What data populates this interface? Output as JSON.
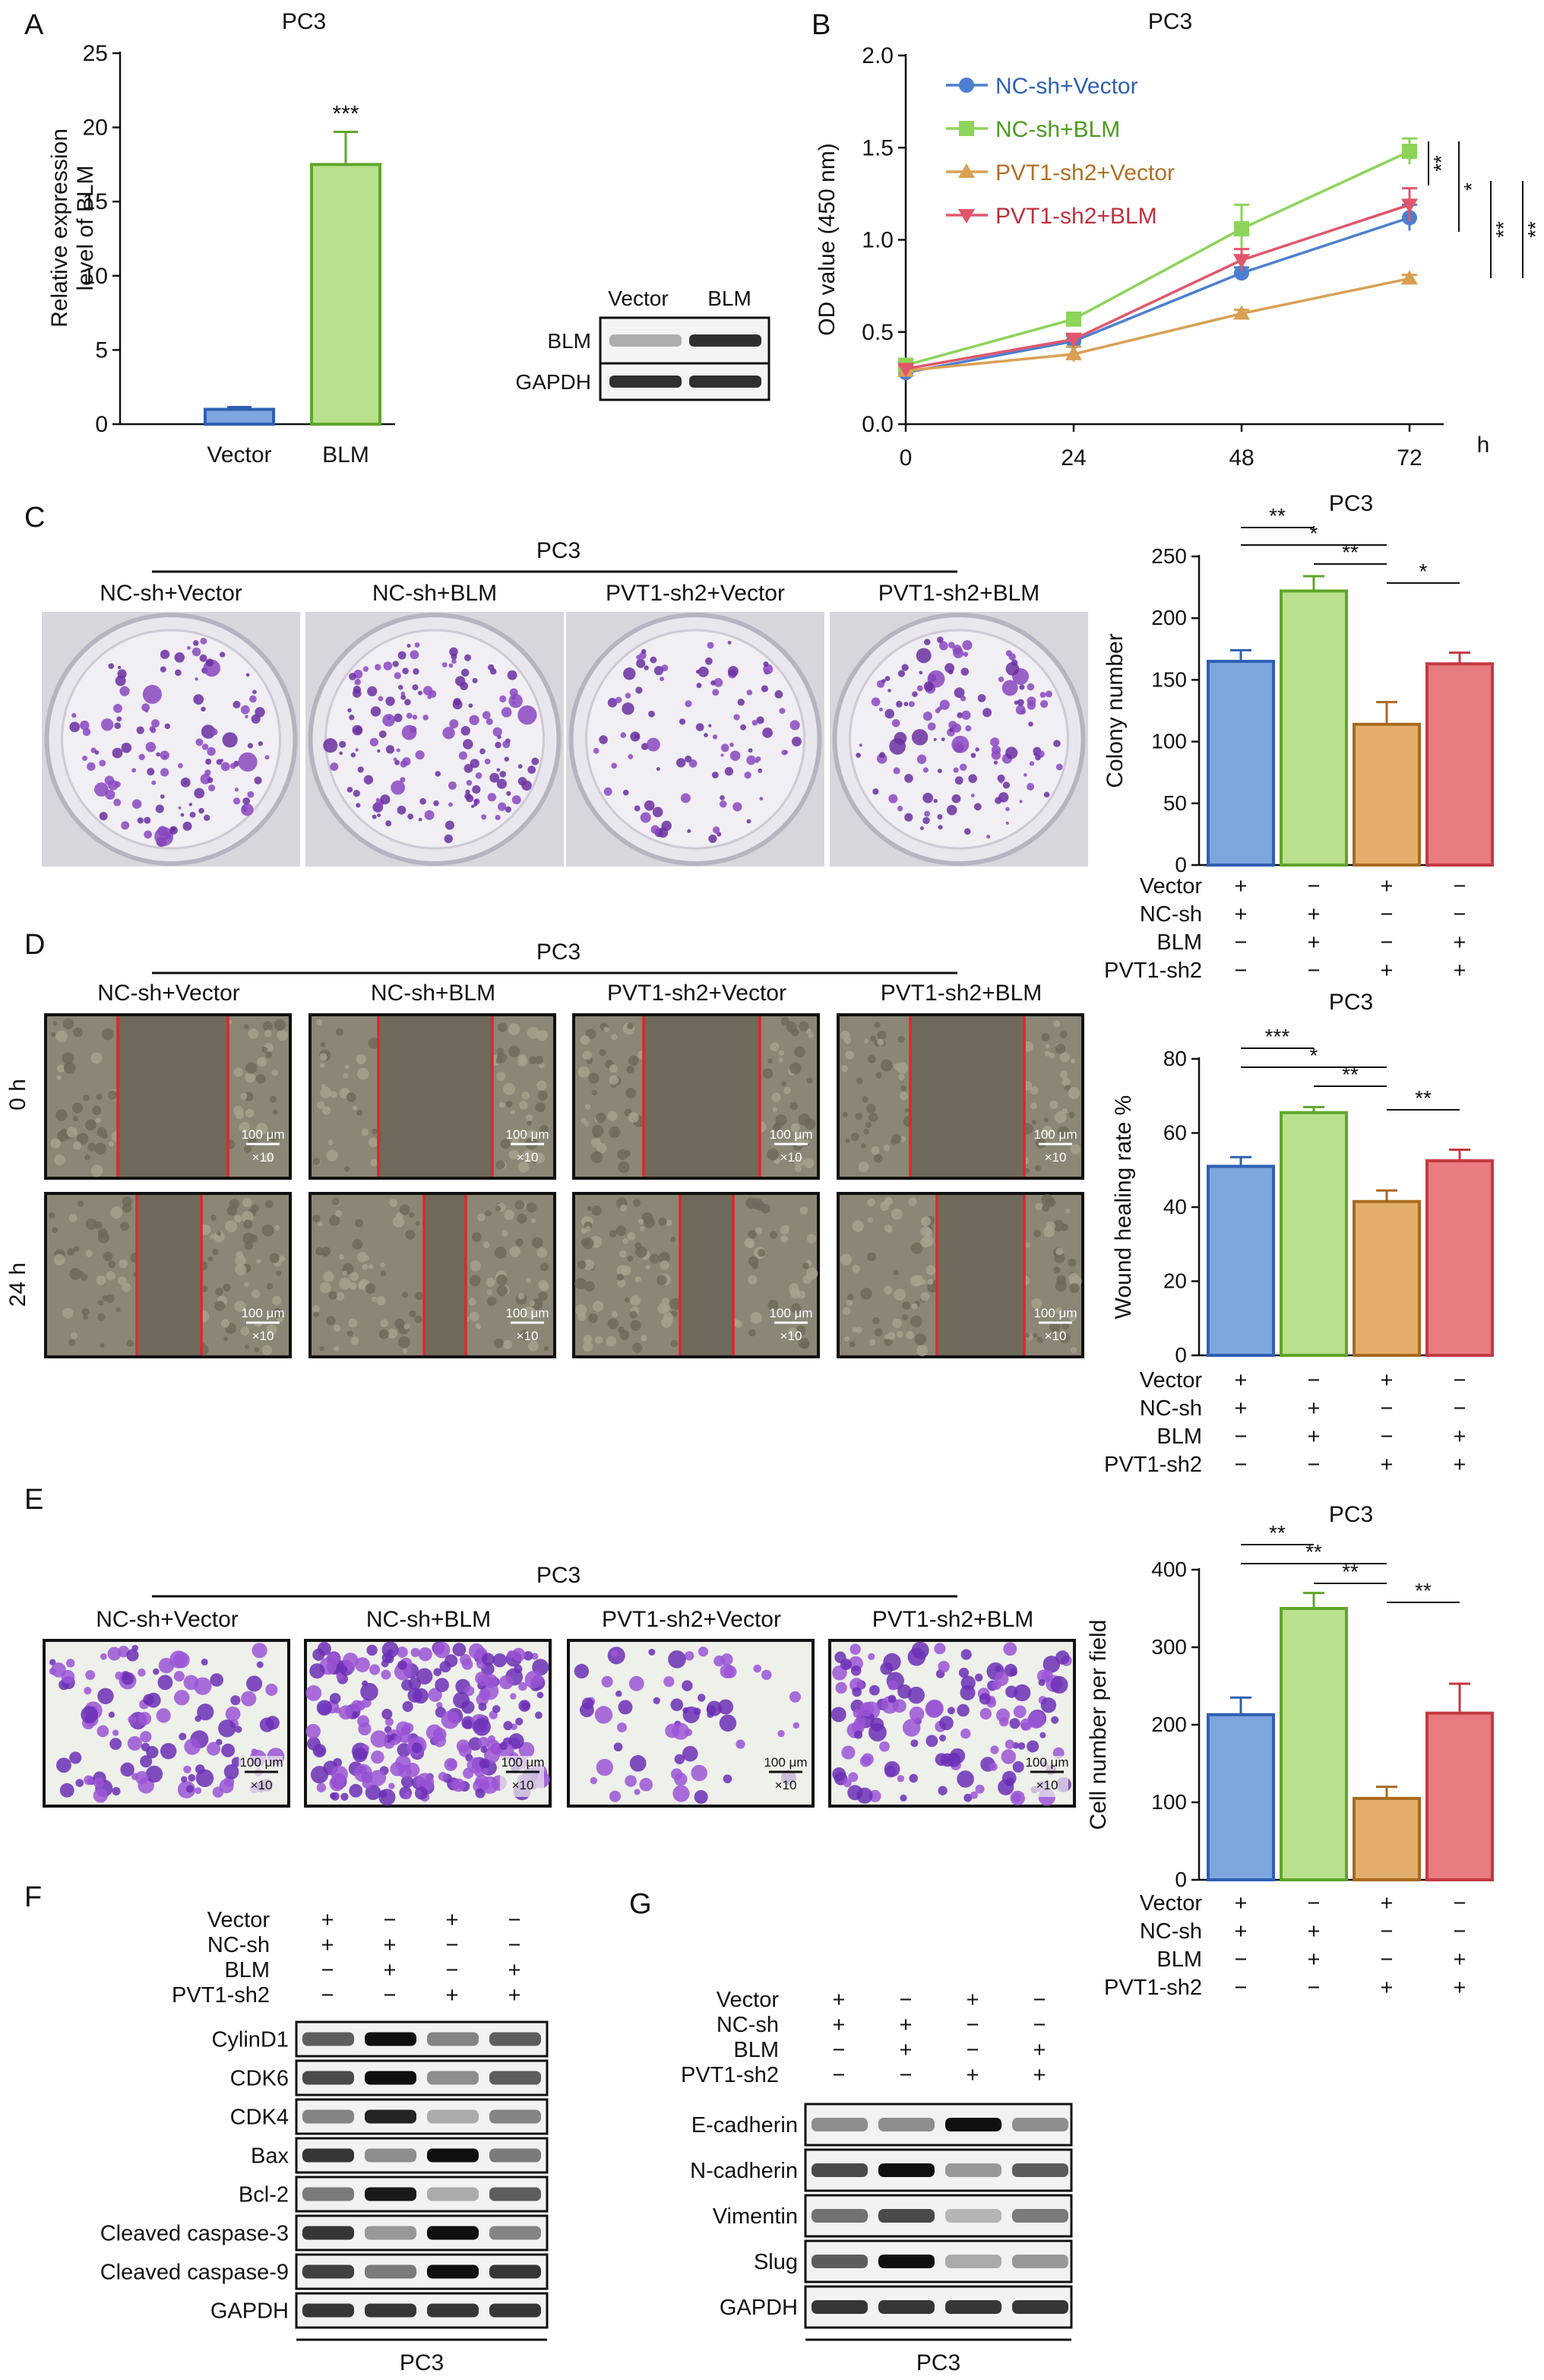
{
  "panel_letters": {
    "a": "A",
    "b": "B",
    "c": "C",
    "d": "D",
    "e": "E",
    "f": "F",
    "g": "G"
  },
  "cell_line": "PC3",
  "group_labels": [
    "NC-sh+Vector",
    "NC-sh+BLM",
    "PVT1-sh2+Vector",
    "PVT1-sh2+BLM"
  ],
  "row_labels": [
    "Vector",
    "NC-sh",
    "BLM",
    "PVT1-sh2"
  ],
  "sign_matrix": [
    [
      "+",
      "−",
      "+",
      "−"
    ],
    [
      "+",
      "+",
      "−",
      "−"
    ],
    [
      "−",
      "+",
      "−",
      "+"
    ],
    [
      "−",
      "−",
      "+",
      "+"
    ]
  ],
  "time_labels": [
    "0 h",
    "24 h"
  ],
  "scale_bar": {
    "length": "100 μm",
    "mag": "×10"
  },
  "colors": {
    "blue": "#7EA6DE",
    "green": "#B9E08C",
    "orange": "#E3AE6B",
    "red": "#E87C80",
    "purple": "#8A3FC9",
    "wound_red": "#E0262B",
    "scratch_bg": "#6F6A5B"
  },
  "chart_data": [
    {
      "id": "A",
      "type": "bar",
      "title": "PC3",
      "ylabel": "Relative expression level of BLM",
      "categories": [
        "Vector",
        "BLM"
      ],
      "values": [
        1.0,
        17.5
      ],
      "errors": [
        0.15,
        2.2
      ],
      "ylim": [
        0,
        25
      ],
      "yticks": [
        0,
        5,
        10,
        15,
        20,
        25
      ],
      "annotations": [
        "***"
      ]
    },
    {
      "id": "B",
      "type": "line",
      "title": "PC3",
      "ylabel": "OD value (450 nm)",
      "xlabel": "h",
      "x": [
        0,
        24,
        48,
        72
      ],
      "ylim": [
        0,
        2.0
      ],
      "yticks": [
        "0.0",
        "0.5",
        "1.0",
        "1.5",
        "2.0"
      ],
      "series": [
        {
          "name": "NC-sh+Vector",
          "values": [
            0.28,
            0.45,
            0.82,
            1.12
          ],
          "errors": [
            0.02,
            0.03,
            0.03,
            0.07
          ]
        },
        {
          "name": "NC-sh+BLM",
          "values": [
            0.32,
            0.57,
            1.06,
            1.48
          ],
          "errors": [
            0.02,
            0.03,
            0.13,
            0.07
          ]
        },
        {
          "name": "PVT1-sh2+Vector",
          "values": [
            0.29,
            0.38,
            0.6,
            0.79
          ],
          "errors": [
            0.02,
            0.04,
            0.02,
            0.02
          ]
        },
        {
          "name": "PVT1-sh2+BLM",
          "values": [
            0.3,
            0.46,
            0.89,
            1.19
          ],
          "errors": [
            0.02,
            0.03,
            0.06,
            0.09
          ]
        }
      ],
      "sig": [
        "**",
        "*",
        "**",
        "**"
      ]
    },
    {
      "id": "C",
      "type": "bar",
      "title": "PC3",
      "ylabel": "Colony number",
      "ylim": [
        0,
        250
      ],
      "yticks": [
        0,
        50,
        100,
        150,
        200,
        250
      ],
      "values": [
        165,
        222,
        114,
        163
      ],
      "errors": [
        9,
        12,
        18,
        9
      ],
      "sig": [
        "**",
        "*",
        "**",
        "*"
      ]
    },
    {
      "id": "D",
      "type": "bar",
      "title": "PC3",
      "ylabel": "Wound healing rate %",
      "ylim": [
        0,
        80
      ],
      "yticks": [
        0,
        20,
        40,
        60,
        80
      ],
      "values": [
        51,
        65.5,
        41.5,
        52.5
      ],
      "errors": [
        2.5,
        1.5,
        3,
        3
      ],
      "sig": [
        "***",
        "*",
        "**",
        "**"
      ]
    },
    {
      "id": "E",
      "type": "bar",
      "title": "PC3",
      "ylabel": "Cell number per field",
      "ylim": [
        0,
        400
      ],
      "yticks": [
        0,
        100,
        200,
        300,
        400
      ],
      "values": [
        213,
        350,
        105,
        215
      ],
      "errors": [
        22,
        20,
        15,
        38
      ],
      "sig": [
        "**",
        "**",
        "**",
        "**"
      ]
    }
  ],
  "blot_a": {
    "headers": [
      "Vector",
      "BLM"
    ],
    "rows": [
      "BLM",
      "GAPDH"
    ]
  },
  "blot_f": {
    "rows": [
      "CylinD1",
      "CDK6",
      "CDK4",
      "Bax",
      "Bcl-2",
      "Cleaved caspase-3",
      "Cleaved caspase-9",
      "GAPDH"
    ],
    "intensity": [
      [
        0.6,
        1,
        0.4,
        0.6
      ],
      [
        0.7,
        1,
        0.35,
        0.6
      ],
      [
        0.4,
        0.9,
        0.2,
        0.4
      ],
      [
        0.8,
        0.35,
        1,
        0.45
      ],
      [
        0.45,
        0.95,
        0.2,
        0.6
      ],
      [
        0.8,
        0.3,
        1,
        0.4
      ],
      [
        0.75,
        0.45,
        1,
        0.8
      ],
      [
        0.8,
        0.8,
        0.8,
        0.8
      ]
    ]
  },
  "blot_g": {
    "rows": [
      "E-cadherin",
      "N-cadherin",
      "Vimentin",
      "Slug",
      "GAPDH"
    ],
    "intensity": [
      [
        0.35,
        0.35,
        1,
        0.35
      ],
      [
        0.7,
        1,
        0.3,
        0.6
      ],
      [
        0.5,
        0.7,
        0.15,
        0.45
      ],
      [
        0.6,
        1,
        0.2,
        0.3
      ],
      [
        0.8,
        0.8,
        0.8,
        0.8
      ]
    ]
  }
}
